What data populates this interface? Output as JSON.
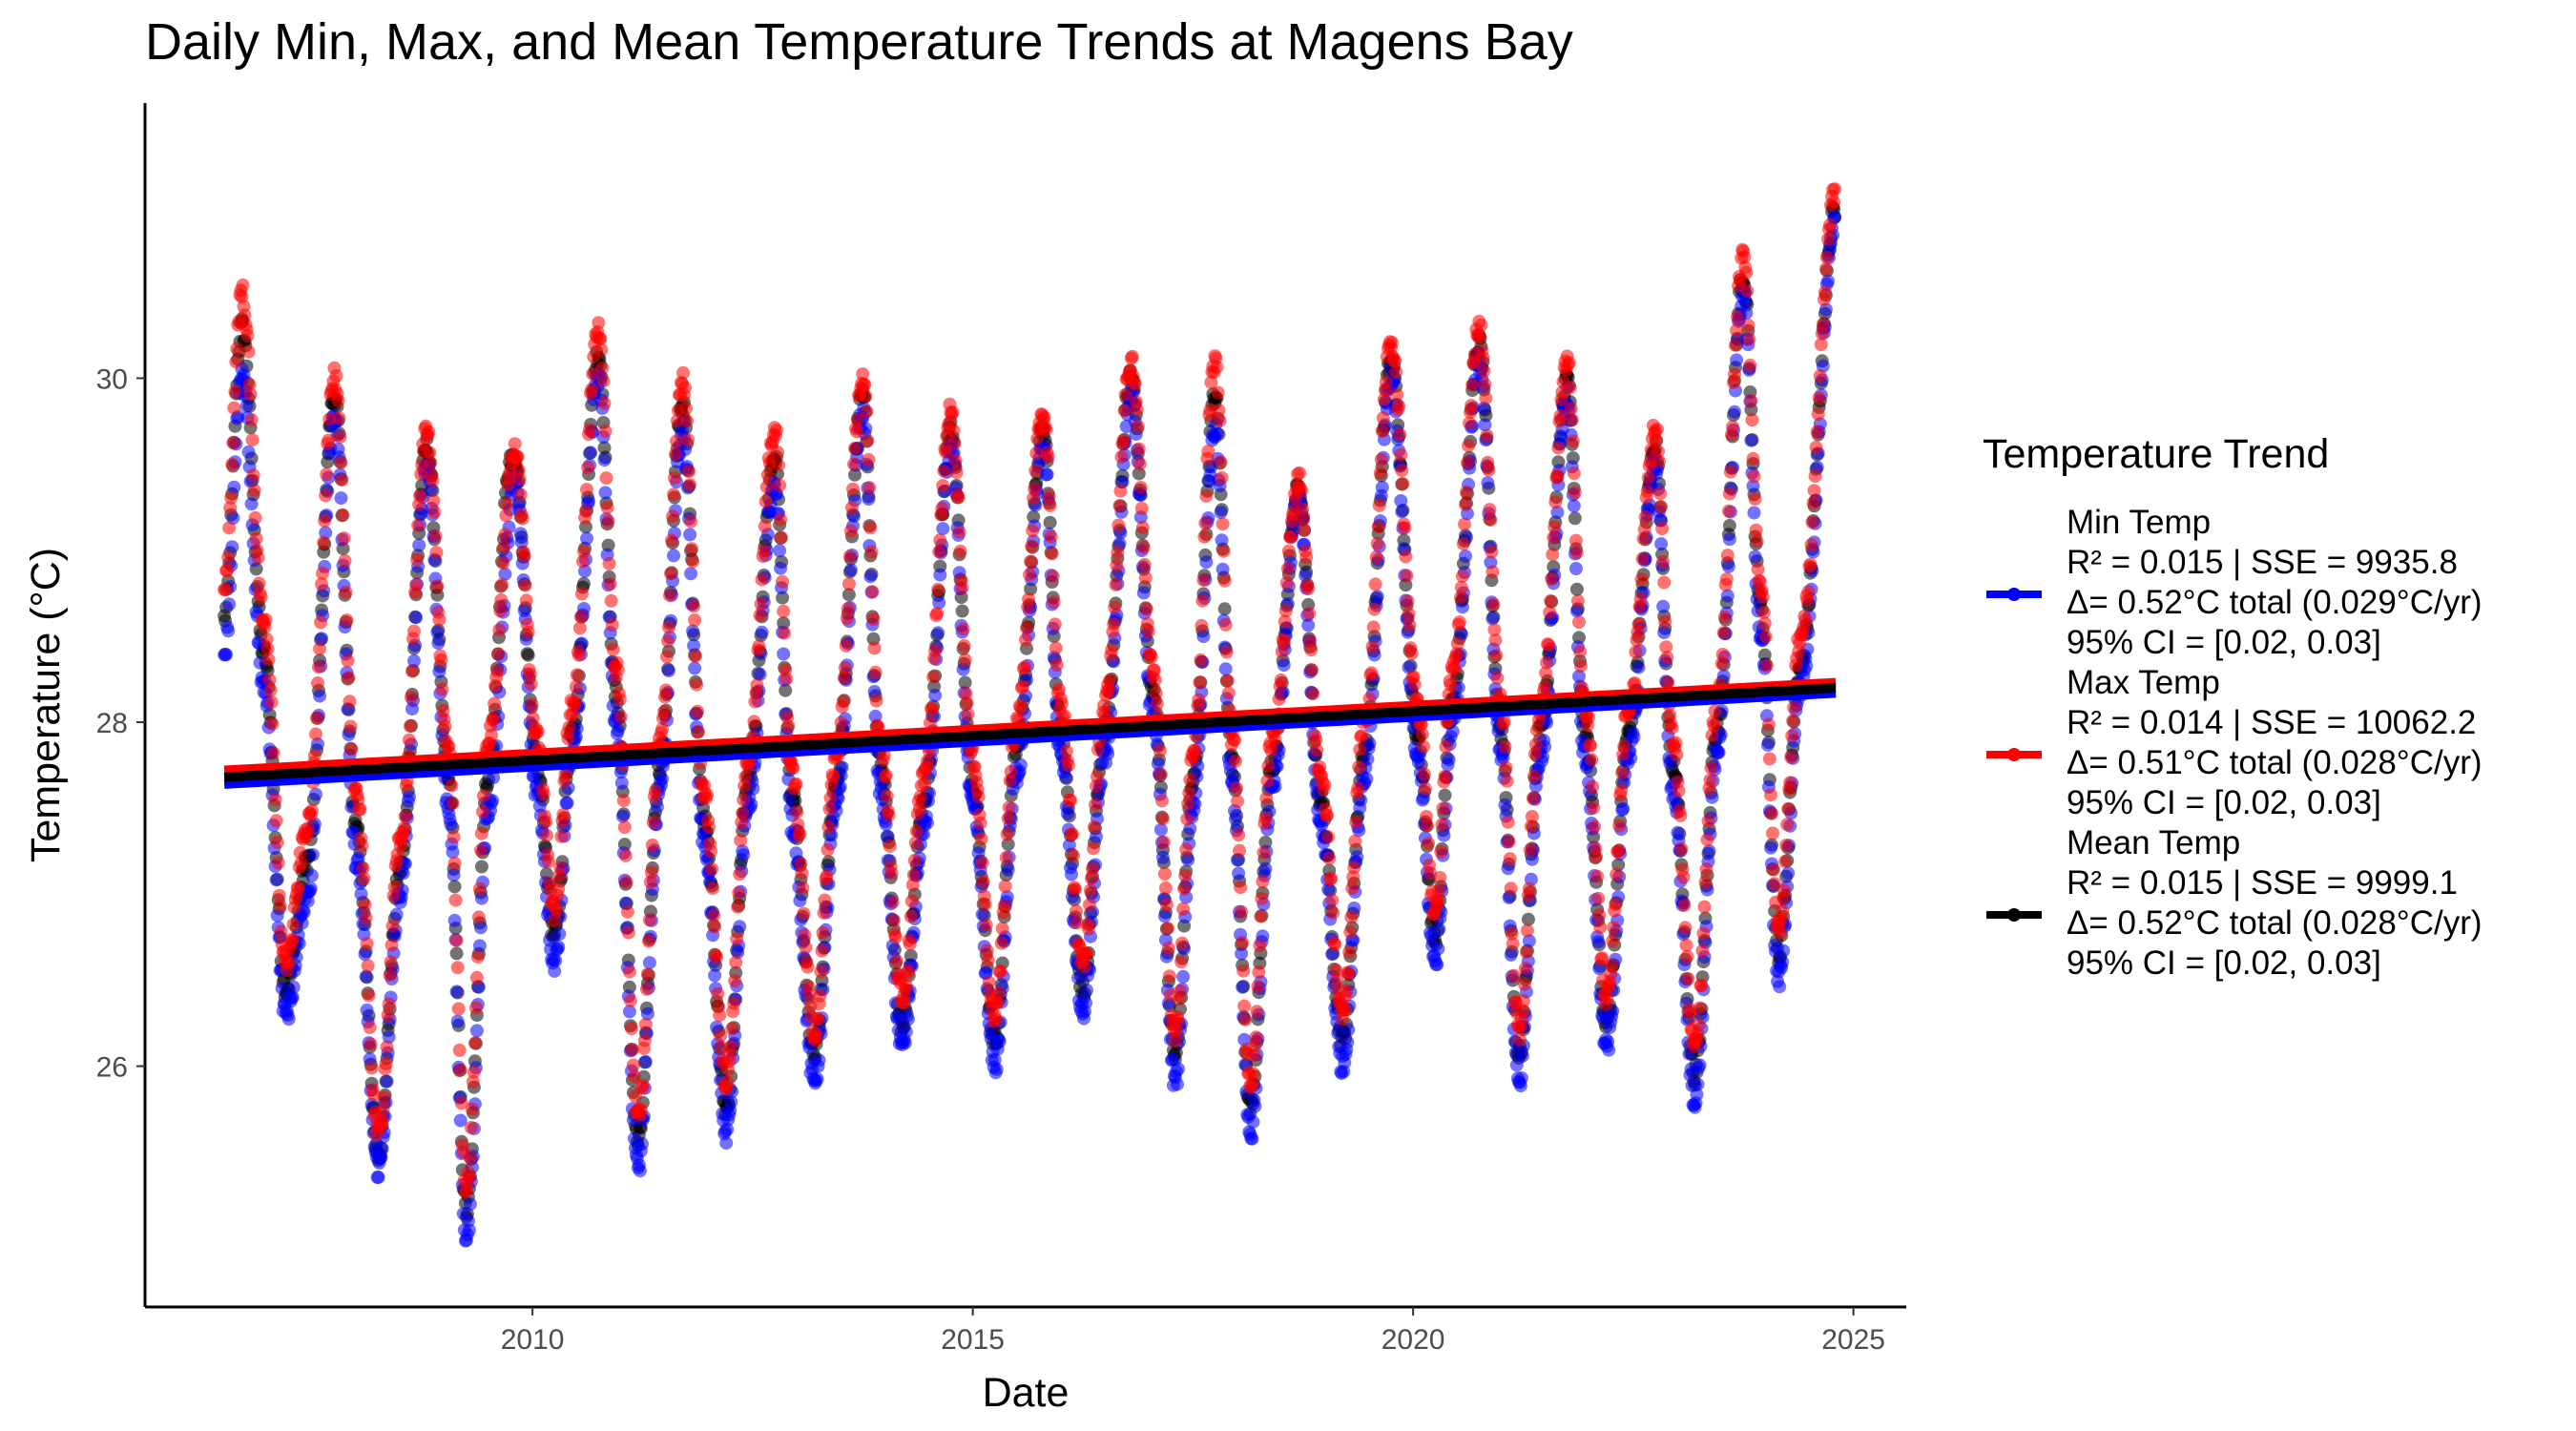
{
  "chart_data": {
    "type": "scatter",
    "title": "Daily Min, Max, and Mean Temperature Trends at Magens Bay",
    "xlabel": "Date",
    "ylabel": "Temperature (°C)",
    "xlim": [
      2005.6,
      2025.6
    ],
    "ylim": [
      24.6,
      31.6
    ],
    "x_ticks": [
      2010,
      2015,
      2020,
      2025
    ],
    "x_tick_labels": [
      "2010",
      "2015",
      "2020",
      "2025"
    ],
    "y_ticks": [
      26,
      28,
      30
    ],
    "y_tick_labels": [
      "26",
      "28",
      "30"
    ],
    "grid": false,
    "legend": {
      "title": "Temperature Trend",
      "position": "right",
      "entries": [
        {
          "lines": [
            "Min Temp",
            "R² = 0.015 | SSE = 9935.8",
            "Δ= 0.52°C total (0.029°C/yr)",
            "95% CI = [0.02, 0.03]"
          ],
          "color": "#0000ff"
        },
        {
          "lines": [
            "Max Temp",
            "R² = 0.014 | SSE = 10062.2",
            "Δ= 0.51°C total (0.028°C/yr)",
            "95% CI = [0.02, 0.03]"
          ],
          "color": "#ff0000"
        },
        {
          "lines": [
            "Mean Temp",
            "R² = 0.015 | SSE = 9999.1",
            "Δ= 0.52°C total (0.028°C/yr)",
            "95% CI = [0.02, 0.03]"
          ],
          "color": "#000000"
        }
      ]
    },
    "series": [
      {
        "name": "Min Temp",
        "color": "#0000ff",
        "trend": {
          "x": [
            2006.5,
            2024.8
          ],
          "y": [
            27.64,
            28.17
          ]
        },
        "curve": [
          [
            2006.5,
            28.4
          ],
          [
            2006.7,
            30.0
          ],
          [
            2006.95,
            28.2
          ],
          [
            2007.2,
            26.3
          ],
          [
            2007.45,
            27.0
          ],
          [
            2007.75,
            29.8
          ],
          [
            2008.0,
            27.2
          ],
          [
            2008.25,
            25.4
          ],
          [
            2008.5,
            27.0
          ],
          [
            2008.8,
            29.5
          ],
          [
            2009.05,
            27.5
          ],
          [
            2009.25,
            25.0
          ],
          [
            2009.5,
            27.5
          ],
          [
            2009.8,
            29.4
          ],
          [
            2010.05,
            27.6
          ],
          [
            2010.25,
            26.6
          ],
          [
            2010.45,
            27.8
          ],
          [
            2010.75,
            30.0
          ],
          [
            2010.95,
            28.0
          ],
          [
            2011.2,
            25.4
          ],
          [
            2011.45,
            27.6
          ],
          [
            2011.7,
            29.7
          ],
          [
            2011.95,
            27.3
          ],
          [
            2012.2,
            25.6
          ],
          [
            2012.45,
            27.5
          ],
          [
            2012.75,
            29.4
          ],
          [
            2012.95,
            27.4
          ],
          [
            2013.2,
            25.9
          ],
          [
            2013.45,
            27.5
          ],
          [
            2013.75,
            29.8
          ],
          [
            2013.95,
            27.6
          ],
          [
            2014.2,
            26.1
          ],
          [
            2014.45,
            27.4
          ],
          [
            2014.75,
            29.6
          ],
          [
            2015.0,
            27.5
          ],
          [
            2015.25,
            26.0
          ],
          [
            2015.5,
            27.7
          ],
          [
            2015.8,
            29.6
          ],
          [
            2016.0,
            27.8
          ],
          [
            2016.25,
            26.3
          ],
          [
            2016.5,
            27.8
          ],
          [
            2016.8,
            29.9
          ],
          [
            2017.05,
            28.0
          ],
          [
            2017.3,
            25.9
          ],
          [
            2017.5,
            27.5
          ],
          [
            2017.75,
            29.7
          ],
          [
            2017.95,
            27.6
          ],
          [
            2018.15,
            25.6
          ],
          [
            2018.4,
            27.6
          ],
          [
            2018.7,
            29.3
          ],
          [
            2018.95,
            27.4
          ],
          [
            2019.2,
            26.0
          ],
          [
            2019.45,
            27.7
          ],
          [
            2019.75,
            30.0
          ],
          [
            2020.05,
            27.8
          ],
          [
            2020.25,
            26.6
          ],
          [
            2020.45,
            28.0
          ],
          [
            2020.75,
            30.1
          ],
          [
            2021.0,
            27.8
          ],
          [
            2021.2,
            25.9
          ],
          [
            2021.45,
            27.8
          ],
          [
            2021.75,
            29.9
          ],
          [
            2021.95,
            27.8
          ],
          [
            2022.2,
            26.1
          ],
          [
            2022.45,
            27.8
          ],
          [
            2022.75,
            29.5
          ],
          [
            2022.95,
            27.6
          ],
          [
            2023.2,
            25.8
          ],
          [
            2023.45,
            27.8
          ],
          [
            2023.75,
            30.5
          ],
          [
            2023.95,
            28.5
          ],
          [
            2024.15,
            26.5
          ],
          [
            2024.4,
            28.2
          ],
          [
            2024.8,
            30.9
          ]
        ]
      },
      {
        "name": "Max Temp",
        "color": "#ff0000",
        "trend": {
          "x": [
            2006.5,
            2024.8
          ],
          "y": [
            27.72,
            28.23
          ]
        },
        "curve": [
          [
            2006.5,
            28.8
          ],
          [
            2006.7,
            30.5
          ],
          [
            2006.95,
            28.6
          ],
          [
            2007.2,
            26.6
          ],
          [
            2007.45,
            27.4
          ],
          [
            2007.75,
            30.0
          ],
          [
            2008.0,
            27.6
          ],
          [
            2008.25,
            25.6
          ],
          [
            2008.5,
            27.3
          ],
          [
            2008.8,
            29.7
          ],
          [
            2009.05,
            27.8
          ],
          [
            2009.25,
            25.3
          ],
          [
            2009.5,
            27.9
          ],
          [
            2009.8,
            29.6
          ],
          [
            2010.05,
            27.9
          ],
          [
            2010.25,
            26.9
          ],
          [
            2010.45,
            28.1
          ],
          [
            2010.75,
            30.3
          ],
          [
            2010.95,
            28.3
          ],
          [
            2011.2,
            25.7
          ],
          [
            2011.45,
            27.9
          ],
          [
            2011.7,
            30.0
          ],
          [
            2011.95,
            27.6
          ],
          [
            2012.2,
            25.9
          ],
          [
            2012.45,
            27.8
          ],
          [
            2012.75,
            29.7
          ],
          [
            2012.95,
            27.7
          ],
          [
            2013.2,
            26.2
          ],
          [
            2013.45,
            27.8
          ],
          [
            2013.75,
            30.0
          ],
          [
            2013.95,
            27.9
          ],
          [
            2014.2,
            26.4
          ],
          [
            2014.45,
            27.7
          ],
          [
            2014.75,
            29.8
          ],
          [
            2015.0,
            27.8
          ],
          [
            2015.25,
            26.3
          ],
          [
            2015.5,
            28.0
          ],
          [
            2015.8,
            29.8
          ],
          [
            2016.0,
            28.1
          ],
          [
            2016.25,
            26.6
          ],
          [
            2016.5,
            28.1
          ],
          [
            2016.8,
            30.1
          ],
          [
            2017.05,
            28.3
          ],
          [
            2017.3,
            26.2
          ],
          [
            2017.5,
            27.8
          ],
          [
            2017.75,
            30.1
          ],
          [
            2017.95,
            27.9
          ],
          [
            2018.15,
            25.9
          ],
          [
            2018.4,
            27.9
          ],
          [
            2018.7,
            29.4
          ],
          [
            2018.95,
            27.7
          ],
          [
            2019.2,
            26.3
          ],
          [
            2019.45,
            28.0
          ],
          [
            2019.75,
            30.2
          ],
          [
            2020.05,
            28.1
          ],
          [
            2020.25,
            26.9
          ],
          [
            2020.45,
            28.3
          ],
          [
            2020.75,
            30.3
          ],
          [
            2021.0,
            28.1
          ],
          [
            2021.2,
            26.2
          ],
          [
            2021.45,
            28.1
          ],
          [
            2021.75,
            30.1
          ],
          [
            2021.95,
            28.1
          ],
          [
            2022.2,
            26.4
          ],
          [
            2022.45,
            28.1
          ],
          [
            2022.75,
            29.7
          ],
          [
            2022.95,
            27.9
          ],
          [
            2023.2,
            26.1
          ],
          [
            2023.45,
            28.1
          ],
          [
            2023.75,
            30.7
          ],
          [
            2023.95,
            28.8
          ],
          [
            2024.15,
            26.8
          ],
          [
            2024.4,
            28.5
          ],
          [
            2024.8,
            31.1
          ]
        ]
      },
      {
        "name": "Mean Temp",
        "color": "#000000",
        "trend": {
          "x": [
            2006.5,
            2024.8
          ],
          "y": [
            27.68,
            28.2
          ]
        },
        "curve": [
          [
            2006.5,
            28.6
          ],
          [
            2006.7,
            30.3
          ],
          [
            2006.95,
            28.4
          ],
          [
            2007.2,
            26.45
          ],
          [
            2007.45,
            27.2
          ],
          [
            2007.75,
            29.9
          ],
          [
            2008.0,
            27.4
          ],
          [
            2008.25,
            25.5
          ],
          [
            2008.5,
            27.15
          ],
          [
            2008.8,
            29.6
          ],
          [
            2009.05,
            27.65
          ],
          [
            2009.25,
            25.15
          ],
          [
            2009.5,
            27.7
          ],
          [
            2009.8,
            29.5
          ],
          [
            2009.75,
            29.5
          ],
          [
            2010.05,
            27.75
          ],
          [
            2010.25,
            26.75
          ],
          [
            2010.45,
            27.95
          ],
          [
            2010.75,
            30.15
          ],
          [
            2010.95,
            28.15
          ],
          [
            2011.2,
            25.55
          ],
          [
            2011.45,
            27.75
          ],
          [
            2011.7,
            29.85
          ],
          [
            2011.95,
            27.45
          ],
          [
            2012.2,
            25.75
          ],
          [
            2012.45,
            27.65
          ],
          [
            2012.75,
            29.55
          ],
          [
            2012.95,
            27.55
          ],
          [
            2013.2,
            26.05
          ],
          [
            2013.45,
            27.65
          ],
          [
            2013.75,
            29.9
          ],
          [
            2013.95,
            27.75
          ],
          [
            2014.2,
            26.25
          ],
          [
            2014.45,
            27.55
          ],
          [
            2014.75,
            29.7
          ],
          [
            2015.0,
            27.65
          ],
          [
            2015.25,
            26.15
          ],
          [
            2015.5,
            27.85
          ],
          [
            2015.8,
            29.7
          ],
          [
            2016.0,
            27.95
          ],
          [
            2016.25,
            26.45
          ],
          [
            2016.5,
            27.95
          ],
          [
            2016.8,
            30.0
          ],
          [
            2017.05,
            28.15
          ],
          [
            2017.3,
            26.05
          ],
          [
            2017.5,
            27.65
          ],
          [
            2017.75,
            29.9
          ],
          [
            2017.95,
            27.75
          ],
          [
            2018.15,
            25.75
          ],
          [
            2018.4,
            27.75
          ],
          [
            2018.7,
            29.35
          ],
          [
            2018.95,
            27.55
          ],
          [
            2019.2,
            26.15
          ],
          [
            2019.45,
            27.85
          ],
          [
            2019.75,
            30.1
          ],
          [
            2020.05,
            27.95
          ],
          [
            2020.25,
            26.75
          ],
          [
            2020.45,
            28.15
          ],
          [
            2020.75,
            30.2
          ],
          [
            2021.0,
            27.95
          ],
          [
            2021.2,
            26.05
          ],
          [
            2021.45,
            27.95
          ],
          [
            2021.75,
            30.0
          ],
          [
            2021.95,
            27.95
          ],
          [
            2022.2,
            26.25
          ],
          [
            2022.45,
            27.95
          ],
          [
            2022.75,
            29.6
          ],
          [
            2022.95,
            27.75
          ],
          [
            2023.2,
            25.95
          ],
          [
            2023.45,
            27.95
          ],
          [
            2023.75,
            30.6
          ],
          [
            2023.95,
            28.65
          ],
          [
            2024.15,
            26.65
          ],
          [
            2024.4,
            28.35
          ],
          [
            2024.8,
            31.0
          ]
        ]
      }
    ]
  }
}
